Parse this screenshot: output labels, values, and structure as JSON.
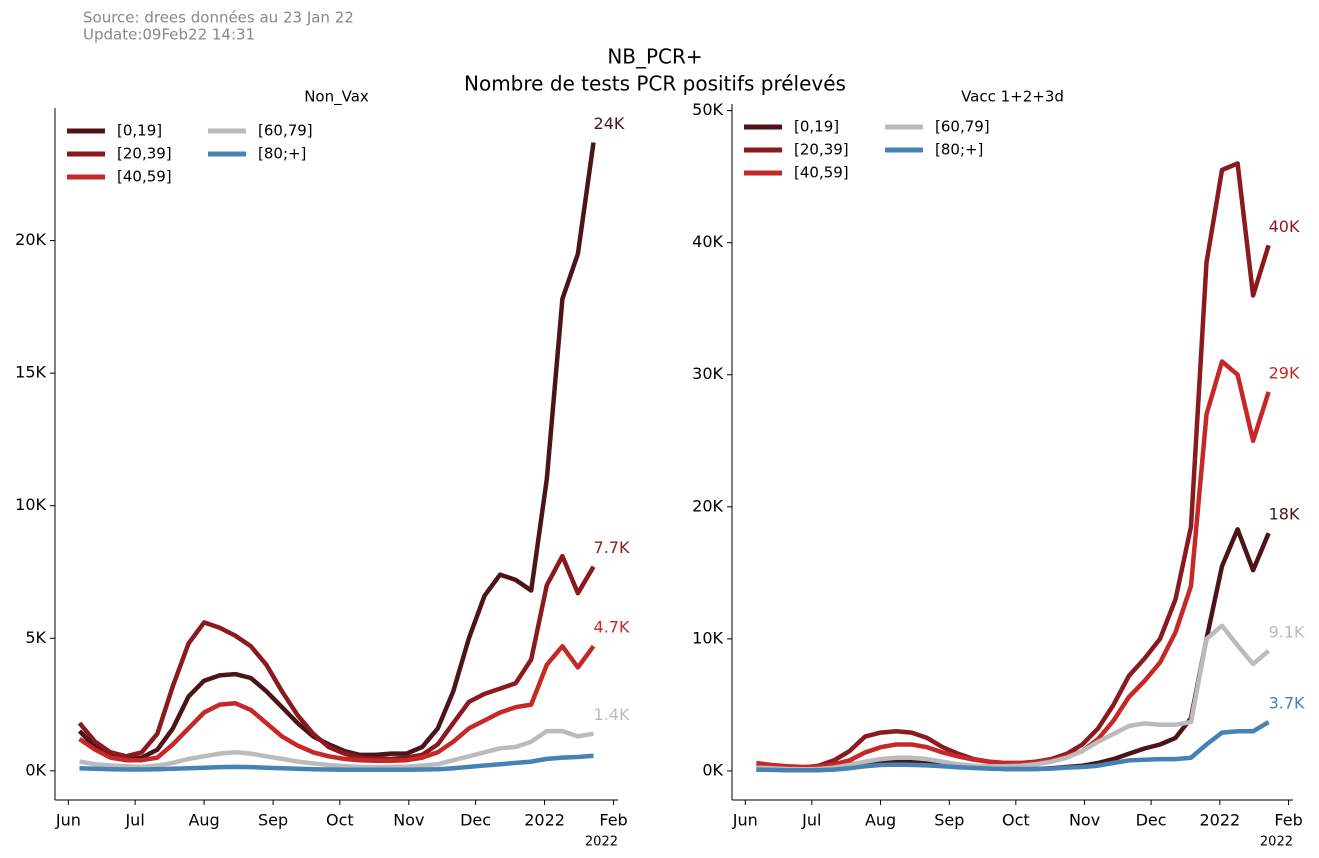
{
  "figure": {
    "source": "Source: drees données au 23 Jan 22",
    "update": "Update:09Feb22 14:31",
    "title": "NB_PCR+",
    "subtitle": "Nombre de tests PCR positifs prélevés"
  },
  "chart_data": [
    {
      "type": "line",
      "title": "Non_Vax",
      "x": [
        5,
        12,
        19,
        26,
        33,
        40,
        47,
        54,
        61,
        68,
        75,
        82,
        89,
        96,
        103,
        110,
        117,
        124,
        131,
        138,
        145,
        152,
        159,
        166,
        173,
        180,
        187,
        194,
        201,
        208,
        215,
        222,
        229,
        236
      ],
      "xlim": [
        -6,
        247
      ],
      "xticks": [
        {
          "value": 0,
          "label": "Jun"
        },
        {
          "value": 30,
          "label": "Jul"
        },
        {
          "value": 61,
          "label": "Aug"
        },
        {
          "value": 92,
          "label": "Sep"
        },
        {
          "value": 122,
          "label": "Oct"
        },
        {
          "value": 153,
          "label": "Nov"
        },
        {
          "value": 183,
          "label": "Dec"
        },
        {
          "value": 214,
          "label": "2022"
        },
        {
          "value": 245,
          "label": "Feb"
        }
      ],
      "x_offset_label": "2022",
      "ylim": [
        -1100,
        25000
      ],
      "yticks": [
        {
          "value": 0,
          "label": "0K"
        },
        {
          "value": 5000,
          "label": "5K"
        },
        {
          "value": 10000,
          "label": "10K"
        },
        {
          "value": 15000,
          "label": "15K"
        },
        {
          "value": 20000,
          "label": "20K"
        }
      ],
      "legend": "upper left",
      "legend_columns": 2,
      "series": [
        {
          "name": "[0,19]",
          "color": "#4d1418",
          "values": [
            1500,
            900,
            600,
            450,
            500,
            800,
            1600,
            2800,
            3400,
            3600,
            3650,
            3500,
            3000,
            2400,
            1800,
            1300,
            1000,
            750,
            600,
            600,
            650,
            650,
            900,
            1600,
            3000,
            5000,
            6600,
            7400,
            7200,
            6800,
            11000,
            17800,
            19500,
            23700
          ],
          "value_labels": [
            null,
            null,
            null,
            null,
            null,
            null,
            null,
            null,
            null,
            null,
            null,
            null,
            null,
            null,
            null,
            null,
            null,
            null,
            null,
            null,
            null,
            null,
            null,
            null,
            null,
            null,
            null,
            null,
            null,
            null,
            null,
            null,
            null,
            "24K"
          ]
        },
        {
          "name": "[20,39]",
          "color": "#8b1a1e",
          "values": [
            1800,
            1100,
            700,
            550,
            700,
            1400,
            3200,
            4800,
            5600,
            5400,
            5100,
            4700,
            4000,
            3000,
            2100,
            1400,
            900,
            650,
            500,
            450,
            450,
            500,
            600,
            1000,
            1800,
            2600,
            2900,
            3100,
            3300,
            4200,
            7000,
            8100,
            6700,
            7700
          ],
          "value_labels": [
            null,
            null,
            null,
            null,
            null,
            null,
            null,
            null,
            null,
            null,
            null,
            null,
            null,
            null,
            null,
            null,
            null,
            null,
            null,
            null,
            null,
            null,
            null,
            null,
            null,
            null,
            null,
            null,
            null,
            null,
            null,
            null,
            null,
            "7.7K"
          ]
        },
        {
          "name": "[40,59]",
          "color": "#c62828",
          "values": [
            1200,
            800,
            500,
            400,
            400,
            500,
            1000,
            1600,
            2200,
            2500,
            2550,
            2300,
            1800,
            1300,
            950,
            700,
            550,
            450,
            400,
            380,
            380,
            400,
            500,
            700,
            1100,
            1600,
            1900,
            2200,
            2400,
            2500,
            4000,
            4700,
            3900,
            4700
          ],
          "value_labels": [
            null,
            null,
            null,
            null,
            null,
            null,
            null,
            null,
            null,
            null,
            null,
            null,
            null,
            null,
            null,
            null,
            null,
            null,
            null,
            null,
            null,
            null,
            null,
            null,
            null,
            null,
            null,
            null,
            null,
            null,
            null,
            null,
            null,
            "4.7K"
          ]
        },
        {
          "name": "[60,79]",
          "color": "#bbbbbb",
          "values": [
            350,
            250,
            200,
            170,
            150,
            200,
            300,
            450,
            550,
            650,
            700,
            650,
            550,
            450,
            350,
            280,
            220,
            180,
            150,
            140,
            150,
            160,
            200,
            250,
            400,
            550,
            700,
            850,
            900,
            1100,
            1500,
            1500,
            1300,
            1400
          ],
          "value_labels": [
            null,
            null,
            null,
            null,
            null,
            null,
            null,
            null,
            null,
            null,
            null,
            null,
            null,
            null,
            null,
            null,
            null,
            null,
            null,
            null,
            null,
            null,
            null,
            null,
            null,
            null,
            null,
            null,
            null,
            null,
            null,
            null,
            null,
            "1.4K"
          ]
        },
        {
          "name": "[80;+]",
          "color": "#4682b4",
          "values": [
            100,
            80,
            60,
            50,
            50,
            60,
            80,
            100,
            120,
            140,
            150,
            140,
            120,
            100,
            80,
            60,
            50,
            40,
            40,
            40,
            40,
            40,
            50,
            60,
            100,
            150,
            200,
            250,
            300,
            350,
            450,
            500,
            520,
            568
          ]
        }
      ]
    },
    {
      "type": "line",
      "title": "Vacc 1+2+3d",
      "x": [
        5,
        12,
        19,
        26,
        33,
        40,
        47,
        54,
        61,
        68,
        75,
        82,
        89,
        96,
        103,
        110,
        117,
        124,
        131,
        138,
        145,
        152,
        159,
        166,
        173,
        180,
        187,
        194,
        201,
        208,
        215,
        222,
        229,
        236
      ],
      "xlim": [
        -6,
        247
      ],
      "xticks": [
        {
          "value": 0,
          "label": "Jun"
        },
        {
          "value": 30,
          "label": "Jul"
        },
        {
          "value": 61,
          "label": "Aug"
        },
        {
          "value": 92,
          "label": "Sep"
        },
        {
          "value": 122,
          "label": "Oct"
        },
        {
          "value": 153,
          "label": "Nov"
        },
        {
          "value": 183,
          "label": "Dec"
        },
        {
          "value": 214,
          "label": "2022"
        },
        {
          "value": 245,
          "label": "Feb"
        }
      ],
      "x_offset_label": "2022",
      "ylim": [
        -2200,
        50500
      ],
      "yticks": [
        {
          "value": 0,
          "label": "0K"
        },
        {
          "value": 10000,
          "label": "10K"
        },
        {
          "value": 20000,
          "label": "20K"
        },
        {
          "value": 30000,
          "label": "30K"
        },
        {
          "value": 40000,
          "label": "40K"
        },
        {
          "value": 50000,
          "label": "50K"
        }
      ],
      "legend": "upper left",
      "legend_columns": 2,
      "series": [
        {
          "name": "[0,19]",
          "color": "#4d1418",
          "values": [
            150,
            100,
            80,
            80,
            150,
            300,
            500,
            600,
            600,
            700,
            700,
            600,
            500,
            400,
            300,
            200,
            150,
            150,
            150,
            200,
            300,
            400,
            600,
            900,
            1300,
            1700,
            2000,
            2500,
            4000,
            10000,
            15500,
            18300,
            15200,
            18000
          ],
          "value_labels": [
            null,
            null,
            null,
            null,
            null,
            null,
            null,
            null,
            null,
            null,
            null,
            null,
            null,
            null,
            null,
            null,
            null,
            null,
            null,
            null,
            null,
            null,
            null,
            null,
            null,
            null,
            null,
            null,
            null,
            null,
            null,
            null,
            null,
            "18K"
          ]
        },
        {
          "name": "[20,39]",
          "color": "#8b1a1e",
          "values": [
            500,
            350,
            250,
            250,
            400,
            800,
            1500,
            2600,
            2900,
            3000,
            2900,
            2500,
            1800,
            1300,
            900,
            700,
            600,
            600,
            700,
            900,
            1300,
            2000,
            3200,
            5000,
            7200,
            8500,
            10000,
            13000,
            18500,
            38500,
            45500,
            46000,
            36000,
            39800
          ],
          "value_labels": [
            null,
            null,
            null,
            null,
            null,
            null,
            null,
            null,
            null,
            null,
            null,
            null,
            null,
            null,
            null,
            null,
            null,
            null,
            null,
            null,
            null,
            null,
            null,
            null,
            null,
            null,
            null,
            null,
            null,
            null,
            null,
            null,
            null,
            "40K"
          ]
        },
        {
          "name": "[40,59]",
          "color": "#c62828",
          "values": [
            600,
            450,
            350,
            300,
            350,
            500,
            800,
            1400,
            1800,
            2000,
            2000,
            1800,
            1400,
            1100,
            850,
            700,
            600,
            600,
            650,
            800,
            1100,
            1500,
            2400,
            3800,
            5600,
            6800,
            8200,
            10500,
            14000,
            27000,
            31000,
            30000,
            25000,
            28700
          ],
          "value_labels": [
            null,
            null,
            null,
            null,
            null,
            null,
            null,
            null,
            null,
            null,
            null,
            null,
            null,
            null,
            null,
            null,
            null,
            null,
            null,
            null,
            null,
            null,
            null,
            null,
            null,
            null,
            null,
            null,
            null,
            null,
            null,
            null,
            null,
            "29K"
          ]
        },
        {
          "name": "[60,79]",
          "color": "#bbbbbb",
          "values": [
            250,
            200,
            150,
            130,
            150,
            250,
            450,
            700,
            900,
            1000,
            1000,
            900,
            700,
            500,
            400,
            350,
            350,
            400,
            500,
            700,
            1000,
            1500,
            2200,
            2800,
            3400,
            3600,
            3500,
            3500,
            3700,
            10000,
            11000,
            9500,
            8100,
            9100
          ],
          "value_labels": [
            null,
            null,
            null,
            null,
            null,
            null,
            null,
            null,
            null,
            null,
            null,
            null,
            null,
            null,
            null,
            null,
            null,
            null,
            null,
            null,
            null,
            null,
            null,
            null,
            null,
            null,
            null,
            null,
            null,
            null,
            null,
            null,
            null,
            "9.1K"
          ]
        },
        {
          "name": "[80;+]",
          "color": "#4682b4",
          "values": [
            100,
            80,
            60,
            50,
            60,
            100,
            200,
            350,
            450,
            480,
            460,
            420,
            350,
            280,
            220,
            180,
            150,
            150,
            150,
            180,
            250,
            300,
            400,
            600,
            800,
            850,
            900,
            900,
            1000,
            2000,
            2900,
            3000,
            3000,
            3700
          ],
          "value_labels": [
            null,
            null,
            null,
            null,
            null,
            null,
            null,
            null,
            null,
            null,
            null,
            null,
            null,
            null,
            null,
            null,
            null,
            null,
            null,
            null,
            null,
            null,
            null,
            null,
            null,
            null,
            null,
            null,
            null,
            null,
            null,
            null,
            null,
            "3.7K"
          ]
        }
      ]
    }
  ]
}
